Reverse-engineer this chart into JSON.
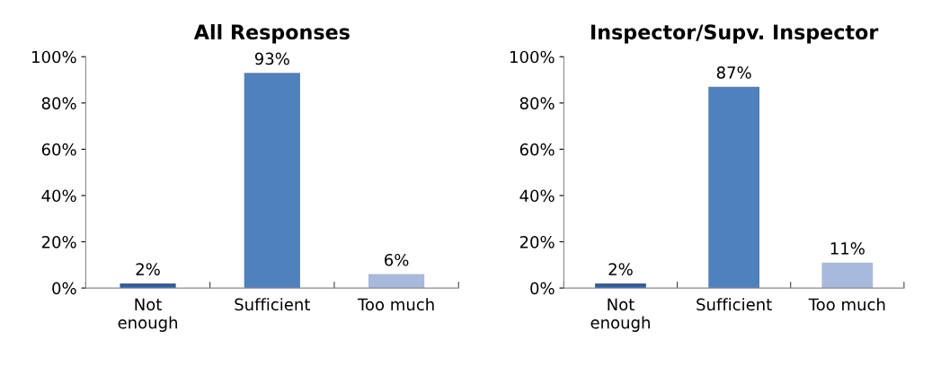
{
  "chart_data": [
    {
      "type": "bar",
      "title": "All Responses",
      "categories": [
        "Not enough",
        "Sufficient",
        "Too much"
      ],
      "values": [
        2,
        93,
        6
      ],
      "colors": [
        "#2f5f9e",
        "#4f81bd",
        "#a7badb"
      ],
      "value_labels": [
        "2%",
        "93%",
        "6%"
      ],
      "ylim": [
        0,
        100
      ],
      "yticks": [
        {
          "value": 0,
          "label": "0%"
        },
        {
          "value": 20,
          "label": "20%"
        },
        {
          "value": 40,
          "label": "40%"
        },
        {
          "value": 60,
          "label": "60%"
        },
        {
          "value": 80,
          "label": "80%"
        },
        {
          "value": 100,
          "label": "100%"
        }
      ],
      "grid": false,
      "legend": false
    },
    {
      "type": "bar",
      "title": "Inspector/Supv. Inspector",
      "categories": [
        "Not enough",
        "Sufficient",
        "Too much"
      ],
      "values": [
        2,
        87,
        11
      ],
      "colors": [
        "#2f5f9e",
        "#4f81bd",
        "#a7badb"
      ],
      "value_labels": [
        "2%",
        "87%",
        "11%"
      ],
      "ylim": [
        0,
        100
      ],
      "yticks": [
        {
          "value": 0,
          "label": "0%"
        },
        {
          "value": 20,
          "label": "20%"
        },
        {
          "value": 40,
          "label": "40%"
        },
        {
          "value": 60,
          "label": "60%"
        },
        {
          "value": 80,
          "label": "80%"
        },
        {
          "value": 100,
          "label": "100%"
        }
      ],
      "grid": false,
      "legend": false
    }
  ]
}
